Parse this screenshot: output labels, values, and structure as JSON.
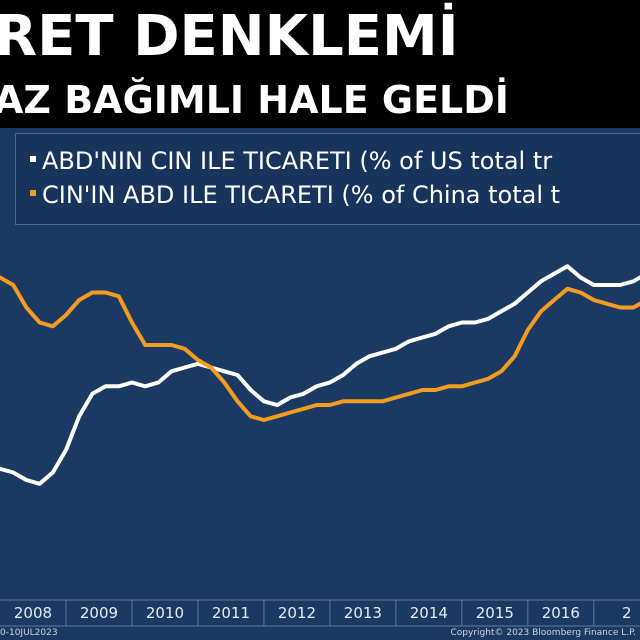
{
  "headline": {
    "line1": "RET DENKLEMİ",
    "line2": "AZ BAĞIMLI HALE GELDİ"
  },
  "footer": {
    "date_range": "0-10JUL2023",
    "copyright": "Copyright© 2023 Bloomberg Finance L.P."
  },
  "colors": {
    "background": "#1b3a63",
    "header": "#000000",
    "series_us": "#ffffff",
    "series_china": "#f39c1f"
  },
  "chart_data": {
    "type": "line",
    "x_ticks": [
      "2008",
      "2009",
      "2010",
      "2011",
      "2012",
      "2013",
      "2014",
      "2015",
      "2016",
      "2"
    ],
    "xlim": [
      2007.5,
      2017.2
    ],
    "ylim": [
      0,
      100
    ],
    "grid": false,
    "legend_placement": "top",
    "series": [
      {
        "name": "ABD'NIN CIN ILE TICARETI (% of US total tr",
        "color": "#ffffff",
        "x": [
          2007.5,
          2007.7,
          2007.9,
          2008.1,
          2008.3,
          2008.5,
          2008.7,
          2008.9,
          2009.1,
          2009.3,
          2009.5,
          2009.7,
          2009.9,
          2010.1,
          2010.3,
          2010.5,
          2010.7,
          2010.9,
          2011.1,
          2011.3,
          2011.5,
          2011.7,
          2011.9,
          2012.1,
          2012.3,
          2012.5,
          2012.7,
          2012.9,
          2013.1,
          2013.3,
          2013.5,
          2013.7,
          2013.9,
          2014.1,
          2014.3,
          2014.5,
          2014.7,
          2014.9,
          2015.1,
          2015.3,
          2015.5,
          2015.7,
          2015.9,
          2016.1,
          2016.3,
          2016.5,
          2016.7,
          2016.9,
          2017.1,
          2017.2
        ],
        "values": [
          35,
          34,
          32,
          31,
          34,
          40,
          49,
          55,
          57,
          57,
          58,
          57,
          58,
          61,
          62,
          63,
          62,
          61,
          60,
          56,
          53,
          52,
          54,
          55,
          57,
          58,
          60,
          63,
          65,
          66,
          67,
          69,
          70,
          71,
          73,
          74,
          74,
          75,
          77,
          79,
          82,
          85,
          87,
          89,
          86,
          84,
          84,
          84,
          85,
          86
        ]
      },
      {
        "name": "CIN'IN ABD ILE TICARETI (% of China total t",
        "color": "#f39c1f",
        "x": [
          2007.5,
          2007.7,
          2007.9,
          2008.1,
          2008.3,
          2008.5,
          2008.7,
          2008.9,
          2009.1,
          2009.3,
          2009.5,
          2009.7,
          2009.9,
          2010.1,
          2010.3,
          2010.5,
          2010.7,
          2010.9,
          2011.1,
          2011.3,
          2011.5,
          2011.7,
          2011.9,
          2012.1,
          2012.3,
          2012.5,
          2012.7,
          2012.9,
          2013.1,
          2013.3,
          2013.5,
          2013.7,
          2013.9,
          2014.1,
          2014.3,
          2014.5,
          2014.7,
          2014.9,
          2015.1,
          2015.3,
          2015.5,
          2015.7,
          2015.9,
          2016.1,
          2016.3,
          2016.5,
          2016.7,
          2016.9,
          2017.1,
          2017.2
        ],
        "values": [
          86,
          84,
          78,
          74,
          73,
          76,
          80,
          82,
          82,
          81,
          74,
          68,
          68,
          68,
          67,
          64,
          62,
          58,
          53,
          49,
          48,
          49,
          50,
          51,
          52,
          52,
          53,
          53,
          53,
          53,
          54,
          55,
          56,
          56,
          57,
          57,
          58,
          59,
          61,
          65,
          72,
          77,
          80,
          83,
          82,
          80,
          79,
          78,
          78,
          79
        ]
      }
    ]
  }
}
